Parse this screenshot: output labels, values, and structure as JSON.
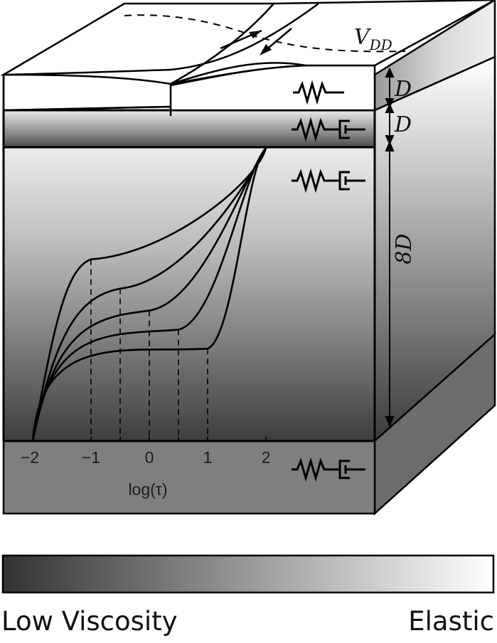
{
  "diagram": {
    "fault_label": "V",
    "fault_label_sub": "DD",
    "layers": [
      {
        "name": "elastic-upper-layer",
        "thickness_label": "D",
        "element": "spring"
      },
      {
        "name": "viscoelastic-thin-layer",
        "thickness_label": "D",
        "element": "spring-dashpot"
      },
      {
        "name": "viscoelastic-middle-layer",
        "thickness_label": "8D",
        "element": "spring-dashpot"
      },
      {
        "name": "bottom-layer",
        "element": "spring-dashpot"
      }
    ],
    "axis": {
      "label": "log(τ)",
      "ticks": [
        "−2",
        "−1",
        "0",
        "1",
        "2"
      ],
      "minor_ticks_at": [
        -0.5,
        0.5
      ]
    }
  },
  "chart_data": {
    "type": "line",
    "title": "",
    "xlabel": "log(τ)",
    "ylabel": "",
    "xlim": [
      -2,
      2
    ],
    "x_ticks": [
      -2,
      -1,
      0,
      1,
      2
    ],
    "dashed_markers_x": [
      -1,
      -0.5,
      0,
      0.5,
      1
    ],
    "series": [
      {
        "marker_x": -1,
        "points": [
          [
            -2,
            0
          ],
          [
            -1,
            0.62
          ],
          [
            2,
            1
          ]
        ]
      },
      {
        "marker_x": -0.5,
        "points": [
          [
            -2,
            0
          ],
          [
            -0.5,
            0.52
          ],
          [
            2,
            1
          ]
        ]
      },
      {
        "marker_x": 0,
        "points": [
          [
            -2,
            0
          ],
          [
            0,
            0.445
          ],
          [
            2,
            1
          ]
        ]
      },
      {
        "marker_x": 0.5,
        "points": [
          [
            -2,
            0
          ],
          [
            0.5,
            0.38
          ],
          [
            2,
            1
          ]
        ]
      },
      {
        "marker_x": 1,
        "points": [
          [
            -2,
            0
          ],
          [
            1,
            0.315
          ],
          [
            2,
            1
          ]
        ]
      }
    ]
  },
  "legend": {
    "left_label": "Low Viscosity",
    "right_label": "Elastic",
    "gradient_from": "#333333",
    "gradient_to": "#ffffff"
  },
  "colors": {
    "outline": "#000000",
    "bottom_front": "#7f7f81",
    "bottom_side": "#6c6c6e",
    "top_surface": "#ffffff"
  }
}
